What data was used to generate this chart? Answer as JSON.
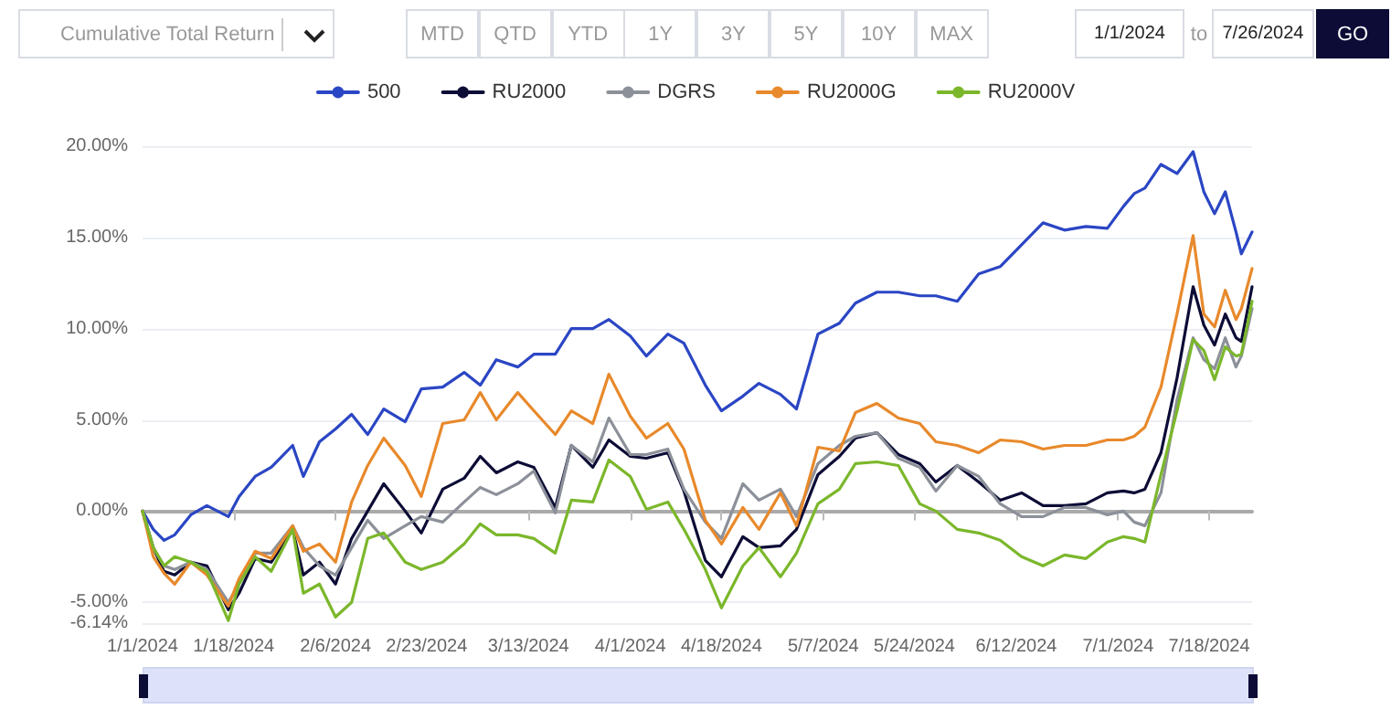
{
  "chart_data": {
    "type": "line",
    "annotations": [
      "Cumulative Total Return",
      "MTD",
      "QTD",
      "YTD",
      "1Y",
      "3Y",
      "5Y",
      "10Y",
      "MAX",
      "1/1/2024",
      "to",
      "7/26/2024",
      "GO"
    ],
    "x": [
      "2024-01-01",
      "2024-01-03",
      "2024-01-05",
      "2024-01-07",
      "2024-01-10",
      "2024-01-13",
      "2024-01-17",
      "2024-01-19",
      "2024-01-22",
      "2024-01-25",
      "2024-01-29",
      "2024-01-31",
      "2024-02-03",
      "2024-02-06",
      "2024-02-09",
      "2024-02-12",
      "2024-02-15",
      "2024-02-19",
      "2024-02-22",
      "2024-02-26",
      "2024-03-01",
      "2024-03-04",
      "2024-03-07",
      "2024-03-11",
      "2024-03-14",
      "2024-03-18",
      "2024-03-21",
      "2024-03-25",
      "2024-03-28",
      "2024-04-01",
      "2024-04-04",
      "2024-04-08",
      "2024-04-11",
      "2024-04-15",
      "2024-04-18",
      "2024-04-22",
      "2024-04-25",
      "2024-04-29",
      "2024-05-02",
      "2024-05-06",
      "2024-05-10",
      "2024-05-13",
      "2024-05-17",
      "2024-05-21",
      "2024-05-25",
      "2024-05-28",
      "2024-06-01",
      "2024-06-05",
      "2024-06-09",
      "2024-06-13",
      "2024-06-17",
      "2024-06-21",
      "2024-06-25",
      "2024-06-29",
      "2024-07-02",
      "2024-07-04",
      "2024-07-06",
      "2024-07-09",
      "2024-07-12",
      "2024-07-15",
      "2024-07-17",
      "2024-07-19",
      "2024-07-21",
      "2024-07-23",
      "2024-07-24",
      "2024-07-26"
    ],
    "series": [
      {
        "name": "500",
        "color": "#2b46c4",
        "values": [
          0,
          -1.0,
          -1.6,
          -1.3,
          -0.2,
          0.3,
          -0.3,
          0.8,
          1.9,
          2.4,
          3.6,
          1.9,
          3.8,
          4.5,
          5.3,
          4.2,
          5.6,
          4.9,
          6.7,
          6.8,
          7.6,
          6.9,
          8.3,
          7.9,
          8.6,
          8.6,
          10.0,
          10.0,
          10.5,
          9.6,
          8.5,
          9.7,
          9.2,
          6.9,
          5.5,
          6.3,
          7.0,
          6.4,
          5.6,
          9.7,
          10.3,
          11.4,
          12.0,
          12.0,
          11.8,
          11.8,
          11.5,
          13.0,
          13.4,
          14.6,
          15.8,
          15.4,
          15.6,
          15.5,
          16.7,
          17.4,
          17.7,
          19.0,
          18.5,
          19.7,
          17.5,
          16.3,
          17.5,
          15.3,
          14.1,
          15.3
        ]
      },
      {
        "name": "RU2000",
        "color": "#0c0c36",
        "values": [
          0,
          -2.0,
          -3.3,
          -3.5,
          -2.8,
          -3.0,
          -5.4,
          -4.5,
          -2.6,
          -2.8,
          -1.0,
          -3.5,
          -2.8,
          -4.0,
          -1.5,
          0.0,
          1.5,
          0.0,
          -1.2,
          1.2,
          1.8,
          3.0,
          2.1,
          2.7,
          2.4,
          0.2,
          3.6,
          2.4,
          3.9,
          3.0,
          2.9,
          3.2,
          1.1,
          -2.7,
          -3.6,
          -1.4,
          -2.0,
          -1.9,
          -1.0,
          2.0,
          3.0,
          4.0,
          4.3,
          3.1,
          2.6,
          1.6,
          2.5,
          1.6,
          0.6,
          1.0,
          0.3,
          0.3,
          0.4,
          1.0,
          1.1,
          1.0,
          1.2,
          3.2,
          7.3,
          12.3,
          10.2,
          9.1,
          10.8,
          9.5,
          9.3,
          12.3
        ]
      },
      {
        "name": "DGRS",
        "color": "#8c9099",
        "values": [
          0,
          -2.0,
          -3.0,
          -3.2,
          -2.8,
          -3.2,
          -5.0,
          -4.0,
          -2.3,
          -2.3,
          -0.8,
          -2.0,
          -3.0,
          -3.5,
          -2.0,
          -0.5,
          -1.5,
          -0.8,
          -0.3,
          -0.6,
          0.5,
          1.3,
          0.9,
          1.5,
          2.2,
          -0.1,
          3.6,
          2.7,
          5.1,
          3.1,
          3.1,
          3.4,
          1.2,
          -0.6,
          -1.5,
          1.5,
          0.6,
          1.2,
          -0.3,
          2.6,
          3.6,
          4.1,
          4.3,
          2.9,
          2.4,
          1.1,
          2.5,
          1.9,
          0.4,
          -0.3,
          -0.3,
          0.2,
          0.2,
          -0.2,
          0,
          -0.6,
          -0.8,
          1.0,
          6.1,
          9.5,
          8.3,
          7.8,
          9.5,
          7.9,
          8.5,
          11.1
        ]
      },
      {
        "name": "RU2000G",
        "color": "#e8892b",
        "values": [
          0,
          -2.5,
          -3.4,
          -4.0,
          -2.8,
          -3.5,
          -5.2,
          -3.7,
          -2.2,
          -2.6,
          -0.8,
          -2.2,
          -1.8,
          -2.8,
          0.5,
          2.5,
          4.0,
          2.5,
          0.8,
          4.8,
          5.0,
          6.5,
          5.0,
          6.5,
          5.5,
          4.2,
          5.5,
          4.8,
          7.5,
          5.2,
          4.0,
          4.8,
          3.4,
          -0.5,
          -1.8,
          0.2,
          -1.0,
          1.0,
          -0.8,
          3.5,
          3.3,
          5.4,
          5.9,
          5.1,
          4.8,
          3.8,
          3.6,
          3.2,
          3.9,
          3.8,
          3.4,
          3.6,
          3.6,
          3.9,
          3.9,
          4.1,
          4.6,
          6.8,
          10.8,
          15.1,
          10.8,
          10.1,
          12.1,
          10.5,
          11.1,
          13.3
        ]
      },
      {
        "name": "RU2000V",
        "color": "#7bb72b",
        "values": [
          0,
          -2.0,
          -3.0,
          -2.5,
          -2.8,
          -3.3,
          -6.0,
          -4.0,
          -2.5,
          -3.3,
          -1.0,
          -4.5,
          -4.0,
          -5.8,
          -5.0,
          -1.5,
          -1.2,
          -2.8,
          -3.2,
          -2.8,
          -1.8,
          -0.7,
          -1.3,
          -1.3,
          -1.5,
          -2.3,
          0.6,
          0.5,
          2.8,
          1.9,
          0.1,
          0.5,
          -1.0,
          -3.2,
          -5.3,
          -3.0,
          -2.0,
          -3.6,
          -2.3,
          0.4,
          1.2,
          2.6,
          2.7,
          2.5,
          0.4,
          0.0,
          -1.0,
          -1.2,
          -1.6,
          -2.5,
          -3.0,
          -2.4,
          -2.6,
          -1.7,
          -1.4,
          -1.5,
          -1.7,
          2.0,
          5.5,
          9.4,
          8.8,
          7.2,
          9.0,
          8.5,
          8.6,
          11.5
        ]
      }
    ],
    "xlim": [
      "2024-01-01",
      "2024-07-26"
    ],
    "xticks": [
      {
        "value": "2024-01-01",
        "label": "1/1/2024"
      },
      {
        "value": "2024-01-18",
        "label": "1/18/2024"
      },
      {
        "value": "2024-02-06",
        "label": "2/6/2024"
      },
      {
        "value": "2024-02-23",
        "label": "2/23/2024"
      },
      {
        "value": "2024-03-13",
        "label": "3/13/2024"
      },
      {
        "value": "2024-04-01",
        "label": "4/1/2024"
      },
      {
        "value": "2024-04-18",
        "label": "4/18/2024"
      },
      {
        "value": "2024-05-07",
        "label": "5/7/2024"
      },
      {
        "value": "2024-05-24",
        "label": "5/24/2024"
      },
      {
        "value": "2024-06-12",
        "label": "6/12/2024"
      },
      {
        "value": "2024-07-01",
        "label": "7/1/2024"
      },
      {
        "value": "2024-07-18",
        "label": "7/18/2024"
      }
    ],
    "ylim": [
      -6.14,
      20
    ],
    "yticks": [
      {
        "value": -6.14,
        "label": "-6.14%"
      },
      {
        "value": -5,
        "label": "-5.00%"
      },
      {
        "value": 0,
        "label": "0.00%"
      },
      {
        "value": 5,
        "label": "5.00%"
      },
      {
        "value": 10,
        "label": "10.00%"
      },
      {
        "value": 15,
        "label": "15.00%"
      },
      {
        "value": 20,
        "label": "20.00%"
      }
    ],
    "grid": "y",
    "legend": "top",
    "marker": "none",
    "line_style": "solid"
  }
}
